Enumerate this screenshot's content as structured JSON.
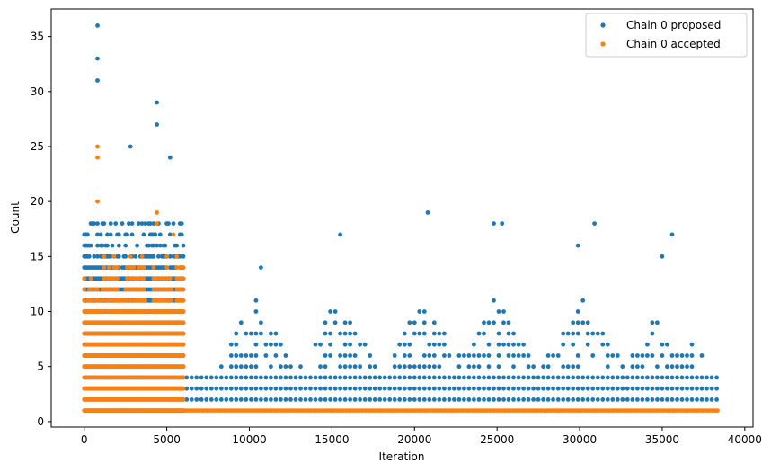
{
  "chart_data": {
    "type": "scatter",
    "title": "",
    "xlabel": "Iteration",
    "ylabel": "Count",
    "xlim": [
      -2000,
      40500
    ],
    "ylim": [
      -0.5,
      37.5
    ],
    "x_ticks": [
      0,
      5000,
      10000,
      15000,
      20000,
      25000,
      30000,
      35000,
      40000
    ],
    "x_tick_labels": [
      "0",
      "5000",
      "10000",
      "15000",
      "20000",
      "25000",
      "30000",
      "35000",
      "40000"
    ],
    "y_ticks": [
      0,
      5,
      10,
      15,
      20,
      25,
      30,
      35
    ],
    "y_tick_labels": [
      "0",
      "5",
      "10",
      "15",
      "20",
      "25",
      "30",
      "35"
    ],
    "grid": false,
    "legend_position": "top-right",
    "series": [
      {
        "name": "Chain 0 proposed",
        "color": "#1f77b4",
        "marker": "circle",
        "description_of_structure": "dense integer-valued counts per iteration, x from 0 to ~38400",
        "envelope": [
          {
            "x_start": 0,
            "x_end": 6000,
            "y_min": 1,
            "y_max_typical": 17,
            "y_max": 36
          },
          {
            "x_start": 6000,
            "x_end": 38400,
            "y_min": 1,
            "y_max_typical": 4,
            "y_max": 19
          }
        ],
        "peaks": [
          {
            "x": 800,
            "y": 36
          },
          {
            "x": 800,
            "y": 33
          },
          {
            "x": 800,
            "y": 31
          },
          {
            "x": 4400,
            "y": 29
          },
          {
            "x": 4400,
            "y": 27
          },
          {
            "x": 2800,
            "y": 25
          },
          {
            "x": 5200,
            "y": 24
          },
          {
            "x": 15500,
            "y": 17
          },
          {
            "x": 20800,
            "y": 19
          },
          {
            "x": 24800,
            "y": 18
          },
          {
            "x": 25300,
            "y": 18
          },
          {
            "x": 30900,
            "y": 18
          },
          {
            "x": 35600,
            "y": 17
          },
          {
            "x": 10700,
            "y": 14
          },
          {
            "x": 29900,
            "y": 16
          },
          {
            "x": 35000,
            "y": 15
          }
        ]
      },
      {
        "name": "Chain 0 accepted",
        "color": "#ff7f0e",
        "marker": "circle",
        "description_of_structure": "accepted counts; dense 1-17 for iterations 0-6000, then constant 1 to ~38400",
        "envelope": [
          {
            "x_start": 0,
            "x_end": 6000,
            "y_min": 1,
            "y_max_typical": 16,
            "y_max": 25
          },
          {
            "x_start": 6000,
            "x_end": 38400,
            "y_min": 1,
            "y_max_typical": 1,
            "y_max": 1
          }
        ],
        "peaks": [
          {
            "x": 800,
            "y": 25
          },
          {
            "x": 800,
            "y": 24
          },
          {
            "x": 800,
            "y": 20
          },
          {
            "x": 4400,
            "y": 19
          },
          {
            "x": 4400,
            "y": 18
          },
          {
            "x": 5400,
            "y": 17
          }
        ]
      }
    ]
  }
}
